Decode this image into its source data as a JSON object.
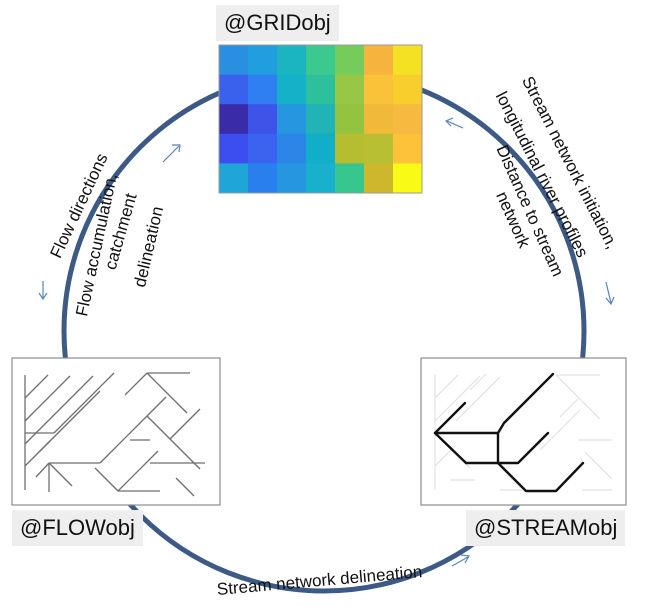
{
  "objects": {
    "grid": {
      "label": "@GRIDobj"
    },
    "flow": {
      "label": "@FLOWobj"
    },
    "stream": {
      "label": "@STREAMobj"
    }
  },
  "edges": {
    "flow_directions": "Flow directions",
    "flow_accumulation": [
      "Flow accumulation,",
      "catchment",
      "delineation"
    ],
    "stream_init": [
      "Stream network initiation,",
      "longitudinal river profiles"
    ],
    "distance_to_stream": [
      "Distance to stream",
      "network"
    ],
    "stream_delineation": "Stream network delineation"
  },
  "colors": {
    "circle": "#3d5a87",
    "arrow": "#5b84b8",
    "panel_border": "#8c8c8c",
    "grid_cells": [
      [
        "#2a8fe0",
        "#219ee0",
        "#1bb5c2",
        "#3cc98f",
        "#75cc5b",
        "#f6b43e",
        "#f5e124"
      ],
      [
        "#3a60ee",
        "#2f7ff2",
        "#14b2c8",
        "#2cc19c",
        "#97c745",
        "#fac238",
        "#f8ce2d"
      ],
      [
        "#3a2ba8",
        "#3e54e8",
        "#2796e0",
        "#21b3b5",
        "#93c440",
        "#f0b93a",
        "#f5ba3f"
      ],
      [
        "#3b4ef0",
        "#3a63f0",
        "#2b86e8",
        "#10aec9",
        "#b5bd30",
        "#b8bf32",
        "#fdc13a"
      ],
      [
        "#20a5d8",
        "#2a7fee",
        "#2796e0",
        "#18b0cc",
        "#37c68e",
        "#cdb72c",
        "#f9fa16"
      ]
    ]
  }
}
